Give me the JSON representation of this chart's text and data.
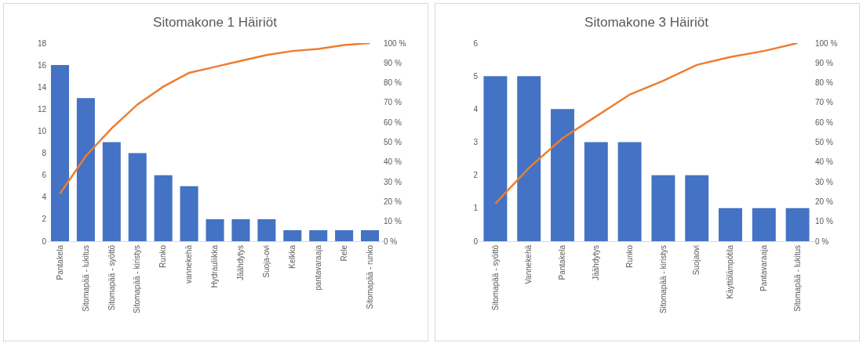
{
  "chart_data": [
    {
      "type": "bar",
      "title": "Sitomakone 1 Häiriöt",
      "categories": [
        "Pantakela",
        "Sitomapää - lukitus",
        "Sitomapää - syöttö",
        "Sitomapää - kiristys",
        "Runko",
        "vannekehä",
        "Hydrauliikka",
        "Jäähdytys",
        "Suoja-ovi",
        "Kelkka",
        "pantavaraaja",
        "Rele",
        "Sitomapää - runko"
      ],
      "series": [
        {
          "color": "#4472c4",
          "values": [
            16,
            13,
            9,
            8,
            6,
            5,
            2,
            2,
            2,
            1,
            1,
            1,
            1
          ]
        },
        {
          "type": "line",
          "axis": "y2",
          "color": "#ed7d31",
          "values": [
            24,
            43,
            57,
            69,
            78,
            85,
            88,
            91,
            94,
            96,
            97,
            99,
            100
          ]
        }
      ],
      "ylim": [
        0,
        18
      ],
      "yticks": [
        0,
        2,
        4,
        6,
        8,
        10,
        12,
        14,
        16,
        18
      ],
      "y2lim": [
        0,
        100
      ],
      "y2ticks": [
        {
          "value": 0,
          "label": "0 %"
        },
        {
          "value": 10,
          "label": "10 %"
        },
        {
          "value": 20,
          "label": "20 %"
        },
        {
          "value": 30,
          "label": "30 %"
        },
        {
          "value": 40,
          "label": "40 %"
        },
        {
          "value": 50,
          "label": "50 %"
        },
        {
          "value": 60,
          "label": "60 %"
        },
        {
          "value": 70,
          "label": "70 %"
        },
        {
          "value": 80,
          "label": "80 %"
        },
        {
          "value": 90,
          "label": "90 %"
        },
        {
          "value": 100,
          "label": "100 %"
        }
      ],
      "marker": "none",
      "line_style": "solid"
    },
    {
      "type": "bar",
      "title": "Sitomakone 3 Häiriöt",
      "categories": [
        "Sitomapää - syöttö",
        "Vannekehä",
        "Pantakela",
        "Jäähdytys",
        "Runko",
        "Sitomapää - kiristys",
        "Suojaovi",
        "Käyttölämpötila",
        "Pantavaraaja",
        "Sitomapää - lukitus"
      ],
      "series": [
        {
          "color": "#4472c4",
          "values": [
            5,
            5,
            4,
            3,
            3,
            2,
            2,
            1,
            1,
            1
          ]
        },
        {
          "type": "line",
          "axis": "y2",
          "color": "#ed7d31",
          "values": [
            19,
            37,
            52,
            63,
            74,
            81,
            89,
            93,
            96,
            100
          ]
        }
      ],
      "ylim": [
        0,
        6
      ],
      "yticks": [
        0,
        1,
        2,
        3,
        4,
        5,
        6
      ],
      "y2lim": [
        0,
        100
      ],
      "y2ticks": [
        {
          "value": 0,
          "label": "0 %"
        },
        {
          "value": 10,
          "label": "10 %"
        },
        {
          "value": 20,
          "label": "20 %"
        },
        {
          "value": 30,
          "label": "30 %"
        },
        {
          "value": 40,
          "label": "40 %"
        },
        {
          "value": 50,
          "label": "50 %"
        },
        {
          "value": 60,
          "label": "60 %"
        },
        {
          "value": 70,
          "label": "70 %"
        },
        {
          "value": 80,
          "label": "80 %"
        },
        {
          "value": 90,
          "label": "90 %"
        },
        {
          "value": 100,
          "label": "100 %"
        }
      ],
      "marker": "none",
      "line_style": "solid"
    }
  ]
}
